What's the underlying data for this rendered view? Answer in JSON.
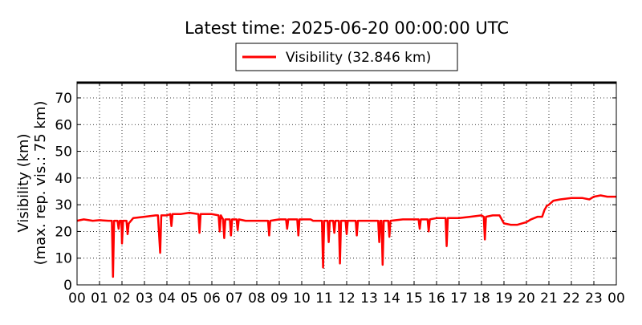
{
  "chart_data": {
    "type": "line",
    "title": "Latest time: 2025-06-20 00:00:00 UTC",
    "ylabel_line1": "Visibility (km)",
    "ylabel_line2": "(max. rep. vis.: 75 km)",
    "xlabel": "",
    "x_ticks": [
      "00",
      "01",
      "02",
      "03",
      "04",
      "05",
      "06",
      "07",
      "08",
      "09",
      "10",
      "11",
      "12",
      "13",
      "14",
      "15",
      "16",
      "17",
      "18",
      "19",
      "20",
      "21",
      "22",
      "23",
      "00"
    ],
    "y_ticks": [
      0,
      10,
      20,
      30,
      40,
      50,
      60,
      70
    ],
    "xlim": [
      0,
      24
    ],
    "ylim": [
      0,
      76
    ],
    "grid": true,
    "legend_position": "top-center",
    "series": [
      {
        "name": "Visibility (32.846 km)",
        "color": "#ff0000",
        "x_unit": "hours",
        "points": [
          [
            0.0,
            24.0
          ],
          [
            0.3,
            24.5
          ],
          [
            0.7,
            24.0
          ],
          [
            1.0,
            24.2
          ],
          [
            1.4,
            24.0
          ],
          [
            1.55,
            24.0
          ],
          [
            1.6,
            3.0
          ],
          [
            1.65,
            24.0
          ],
          [
            1.8,
            24.0
          ],
          [
            1.85,
            21.0
          ],
          [
            1.9,
            24.0
          ],
          [
            1.98,
            24.0
          ],
          [
            2.0,
            15.5
          ],
          [
            2.05,
            24.0
          ],
          [
            2.2,
            24.0
          ],
          [
            2.25,
            19.0
          ],
          [
            2.3,
            23.0
          ],
          [
            2.5,
            25.0
          ],
          [
            3.0,
            25.5
          ],
          [
            3.5,
            26.0
          ],
          [
            3.6,
            26.0
          ],
          [
            3.7,
            12.0
          ],
          [
            3.75,
            26.0
          ],
          [
            4.0,
            26.0
          ],
          [
            4.15,
            26.5
          ],
          [
            4.2,
            22.0
          ],
          [
            4.25,
            26.5
          ],
          [
            4.6,
            26.5
          ],
          [
            5.0,
            27.0
          ],
          [
            5.4,
            26.5
          ],
          [
            5.45,
            19.5
          ],
          [
            5.5,
            26.5
          ],
          [
            6.0,
            26.5
          ],
          [
            6.3,
            26.0
          ],
          [
            6.35,
            20.0
          ],
          [
            6.4,
            26.0
          ],
          [
            6.5,
            24.5
          ],
          [
            6.55,
            17.5
          ],
          [
            6.6,
            24.5
          ],
          [
            6.8,
            24.5
          ],
          [
            6.85,
            18.5
          ],
          [
            6.9,
            24.5
          ],
          [
            7.1,
            24.5
          ],
          [
            7.15,
            20.5
          ],
          [
            7.2,
            24.5
          ],
          [
            7.5,
            24.0
          ],
          [
            8.0,
            24.0
          ],
          [
            8.5,
            24.0
          ],
          [
            8.55,
            18.5
          ],
          [
            8.6,
            24.0
          ],
          [
            9.0,
            24.5
          ],
          [
            9.3,
            24.5
          ],
          [
            9.35,
            21.0
          ],
          [
            9.4,
            24.5
          ],
          [
            9.8,
            24.5
          ],
          [
            9.85,
            18.5
          ],
          [
            9.9,
            24.5
          ],
          [
            10.4,
            24.5
          ],
          [
            10.5,
            24.0
          ],
          [
            10.9,
            24.0
          ],
          [
            10.95,
            6.5
          ],
          [
            11.0,
            24.0
          ],
          [
            11.15,
            24.0
          ],
          [
            11.2,
            16.0
          ],
          [
            11.25,
            24.0
          ],
          [
            11.4,
            24.0
          ],
          [
            11.45,
            19.5
          ],
          [
            11.5,
            24.0
          ],
          [
            11.65,
            24.0
          ],
          [
            11.7,
            8.0
          ],
          [
            11.75,
            24.0
          ],
          [
            11.95,
            24.0
          ],
          [
            12.0,
            19.0
          ],
          [
            12.05,
            24.0
          ],
          [
            12.4,
            24.0
          ],
          [
            12.45,
            18.5
          ],
          [
            12.5,
            24.0
          ],
          [
            13.0,
            24.0
          ],
          [
            13.4,
            24.0
          ],
          [
            13.45,
            16.0
          ],
          [
            13.5,
            24.0
          ],
          [
            13.55,
            24.0
          ],
          [
            13.6,
            7.5
          ],
          [
            13.65,
            24.0
          ],
          [
            13.85,
            24.0
          ],
          [
            13.9,
            18.0
          ],
          [
            13.95,
            24.0
          ],
          [
            14.5,
            24.5
          ],
          [
            15.0,
            24.5
          ],
          [
            15.2,
            24.5
          ],
          [
            15.25,
            21.0
          ],
          [
            15.3,
            24.5
          ],
          [
            15.6,
            24.5
          ],
          [
            15.65,
            20.0
          ],
          [
            15.7,
            24.5
          ],
          [
            16.0,
            25.0
          ],
          [
            16.4,
            25.0
          ],
          [
            16.45,
            14.5
          ],
          [
            16.5,
            25.0
          ],
          [
            17.0,
            25.0
          ],
          [
            17.5,
            25.5
          ],
          [
            18.0,
            26.0
          ],
          [
            18.1,
            25.5
          ],
          [
            18.15,
            17.0
          ],
          [
            18.2,
            25.5
          ],
          [
            18.5,
            26.0
          ],
          [
            18.8,
            26.0
          ],
          [
            19.0,
            23.0
          ],
          [
            19.3,
            22.5
          ],
          [
            19.6,
            22.5
          ],
          [
            20.0,
            23.5
          ],
          [
            20.2,
            24.5
          ],
          [
            20.5,
            25.5
          ],
          [
            20.7,
            25.5
          ],
          [
            20.8,
            28.0
          ],
          [
            20.9,
            29.5
          ],
          [
            21.0,
            30.0
          ],
          [
            21.2,
            31.5
          ],
          [
            21.5,
            32.0
          ],
          [
            22.0,
            32.5
          ],
          [
            22.5,
            32.5
          ],
          [
            22.8,
            32.0
          ],
          [
            23.0,
            33.0
          ],
          [
            23.3,
            33.5
          ],
          [
            23.6,
            33.0
          ],
          [
            23.8,
            33.0
          ],
          [
            24.0,
            33.0
          ]
        ]
      }
    ]
  }
}
